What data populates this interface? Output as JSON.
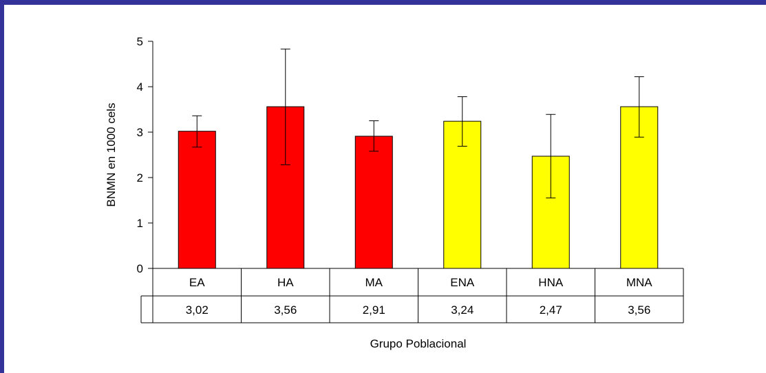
{
  "frame_color": "#333399",
  "chart_data": {
    "type": "bar",
    "categories": [
      "EA",
      "HA",
      "MA",
      "ENA",
      "HNA",
      "MNA"
    ],
    "values": [
      3.02,
      3.56,
      2.91,
      3.24,
      2.47,
      3.56
    ],
    "value_labels": [
      "3,02",
      "3,56",
      "2,91",
      "3,24",
      "2,47",
      "3,56"
    ],
    "error_low": [
      2.67,
      2.28,
      2.58,
      2.69,
      1.55,
      2.89
    ],
    "error_high": [
      3.36,
      4.83,
      3.25,
      3.78,
      3.39,
      4.22
    ],
    "bar_colors": [
      "#ff0000",
      "#ff0000",
      "#ff0000",
      "#ffff00",
      "#ffff00",
      "#ffff00"
    ],
    "ylabel": "BNMN en 1000 cels",
    "xlabel": "Grupo Poblacional",
    "ylim": [
      0,
      5
    ],
    "yticks": [
      "0",
      "1",
      "2",
      "3",
      "4",
      "5"
    ],
    "grid": false,
    "legend": "none"
  }
}
